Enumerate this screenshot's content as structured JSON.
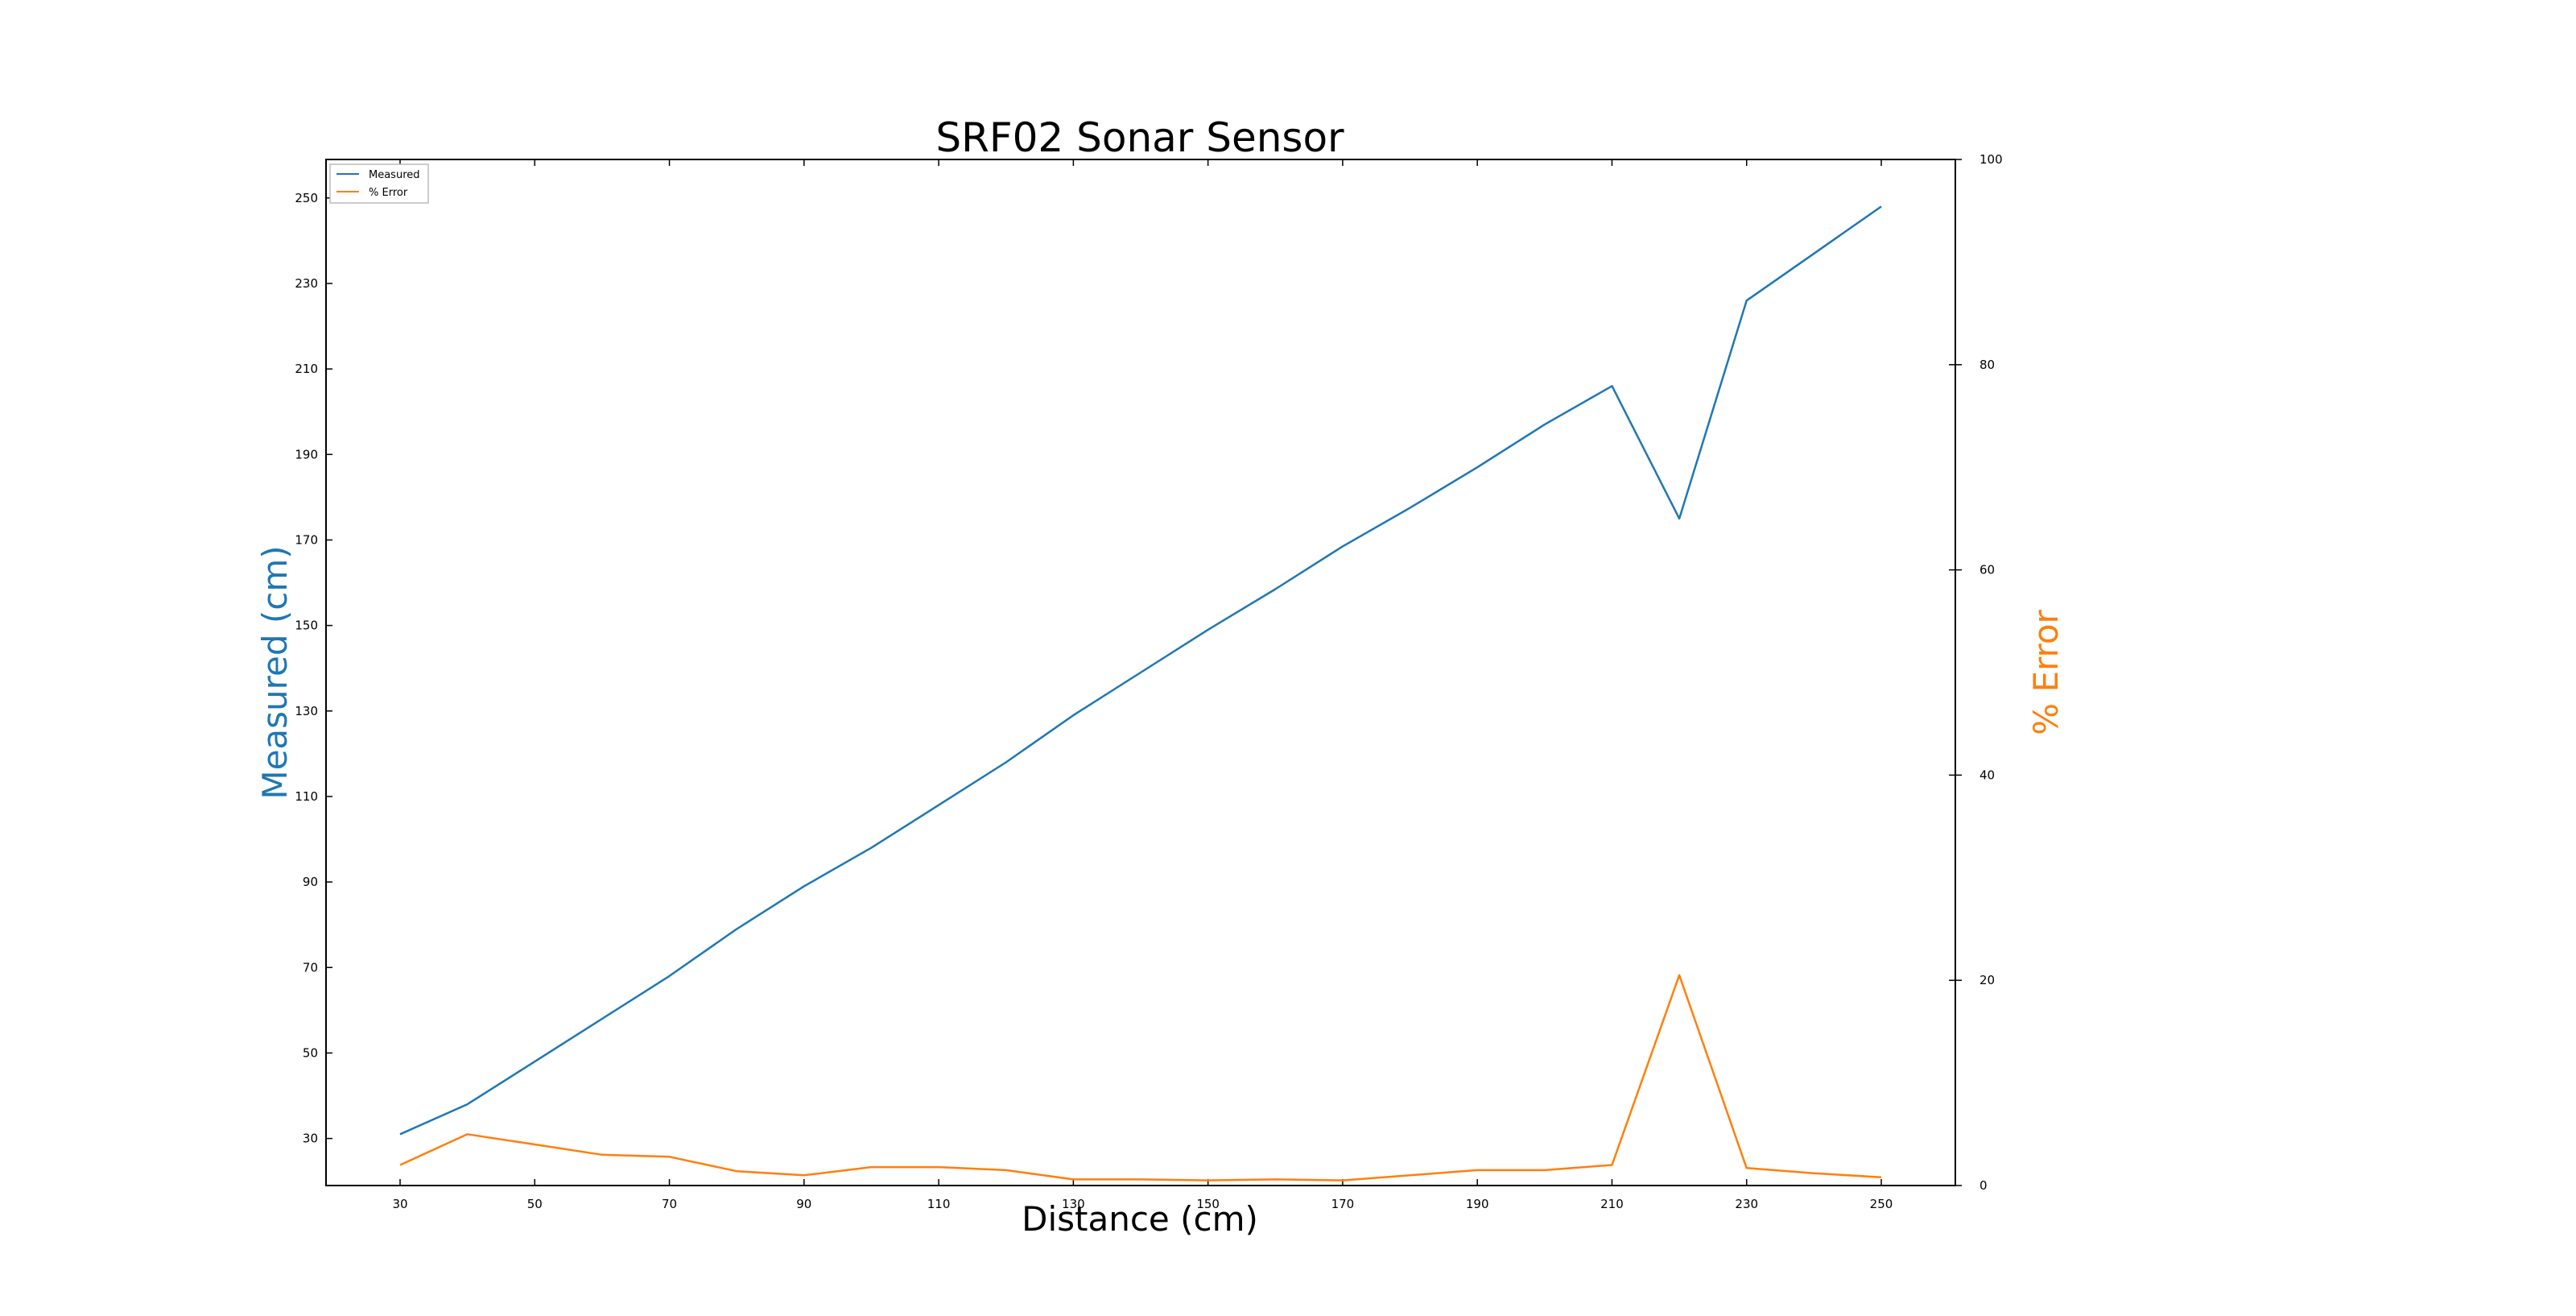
{
  "chart_data": {
    "type": "line",
    "title": "SRF02 Sonar Sensor",
    "xlabel": "Distance (cm)",
    "ylabel": "Measured (cm)",
    "y2label": "% Error",
    "xlim": [
      19,
      261
    ],
    "ylim": [
      19,
      259
    ],
    "y2lim": [
      0,
      100
    ],
    "xticks": [
      30,
      50,
      70,
      90,
      110,
      130,
      150,
      170,
      190,
      210,
      230,
      250
    ],
    "yticks": [
      30,
      50,
      70,
      90,
      110,
      130,
      150,
      170,
      190,
      210,
      230,
      250
    ],
    "y2ticks": [
      0,
      20,
      40,
      60,
      80,
      100
    ],
    "grid": false,
    "legend_position": "top-left",
    "x": [
      30,
      40,
      50,
      60,
      70,
      80,
      90,
      100,
      110,
      120,
      130,
      140,
      150,
      160,
      170,
      180,
      190,
      200,
      210,
      220,
      230,
      240,
      250
    ],
    "series": [
      {
        "name": "Measured",
        "axis": "left",
        "color": "#1f77b4",
        "values": [
          31,
          38,
          48,
          58,
          68,
          79,
          89,
          98,
          108,
          118,
          129,
          139,
          149,
          158.5,
          168.5,
          177.5,
          187,
          197,
          206,
          175,
          226,
          237,
          248
        ]
      },
      {
        "name": "% Error",
        "axis": "right",
        "color": "#ff7f0e",
        "values": [
          2,
          5,
          4,
          3,
          2.8,
          1.4,
          1,
          1.8,
          1.8,
          1.5,
          0.6,
          0.6,
          0.5,
          0.6,
          0.5,
          1,
          1.5,
          1.5,
          2,
          20.5,
          1.7,
          1.2,
          0.8
        ]
      }
    ],
    "axis_label_colors": {
      "left": "#1f77b4",
      "right": "#ff7f0e"
    }
  }
}
